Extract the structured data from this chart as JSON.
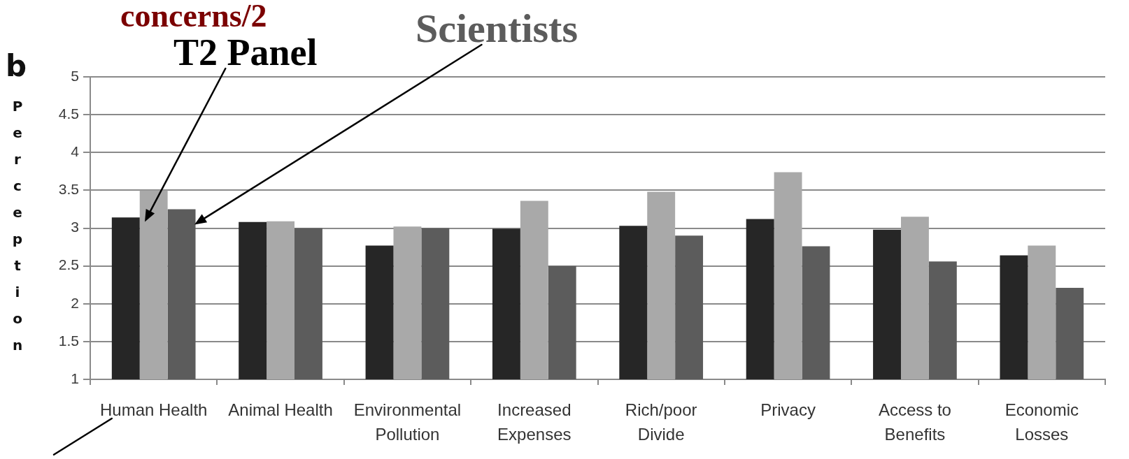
{
  "chart_data": {
    "type": "bar",
    "title": "concerns/2",
    "annotations": [
      "b"
    ],
    "ylabel": "Perception",
    "categories": [
      "Human Health",
      "Animal Health",
      "Environmental Pollution",
      "Increased Expenses",
      "Rich/poor Divide",
      "Privacy",
      "Access to Benefits",
      "Economic Losses"
    ],
    "series": [
      {
        "color": "#262626",
        "values": [
          3.14,
          3.08,
          2.77,
          2.99,
          3.03,
          3.12,
          2.98,
          2.64
        ]
      },
      {
        "name": "T2 Panel",
        "color": "#a9a9a9",
        "values": [
          3.5,
          3.09,
          3.02,
          3.36,
          3.48,
          3.74,
          3.15,
          2.77
        ]
      },
      {
        "name": "Scientists",
        "color": "#5c5c5c",
        "values": [
          3.25,
          3.0,
          3.0,
          2.5,
          2.9,
          2.76,
          2.56,
          2.21
        ]
      }
    ],
    "ylim": [
      1,
      5
    ],
    "yticks": [
      1,
      1.5,
      2,
      2.5,
      3,
      3.5,
      4,
      4.5,
      5
    ],
    "grid": "y"
  }
}
